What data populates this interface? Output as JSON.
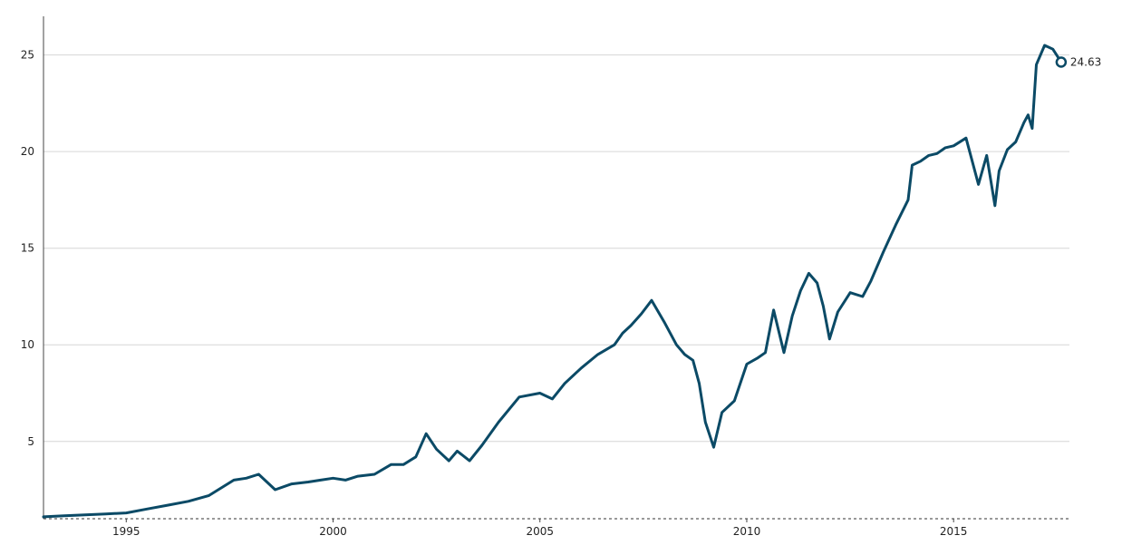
{
  "chart_data": {
    "type": "line",
    "title": "",
    "xlabel": "",
    "ylabel": "",
    "xlim": [
      1993.0,
      2017.8
    ],
    "ylim": [
      1.0,
      27.0
    ],
    "x_ticks": [
      {
        "value": 1995,
        "label": "1995"
      },
      {
        "value": 2000,
        "label": "2000"
      },
      {
        "value": 2005,
        "label": "2005"
      },
      {
        "value": 2010,
        "label": "2010"
      },
      {
        "value": 2015,
        "label": "2015"
      }
    ],
    "y_ticks": [
      {
        "value": 5,
        "label": "5"
      },
      {
        "value": 10,
        "label": "10"
      },
      {
        "value": 15,
        "label": "15"
      },
      {
        "value": 20,
        "label": "20"
      },
      {
        "value": 25,
        "label": "25"
      }
    ],
    "grid": true,
    "line_color": "#0b4a66",
    "end_label": "24.63",
    "series": [
      {
        "x": [
          1993.0,
          1993.5,
          1994.0,
          1994.5,
          1995.0,
          1995.5,
          1996.0,
          1996.5,
          1997.0,
          1997.3,
          1997.6,
          1997.9,
          1998.2,
          1998.4,
          1998.6,
          1999.0,
          1999.4,
          1999.7,
          2000.0,
          2000.3,
          2000.6,
          2001.0,
          2001.4,
          2001.7,
          2002.0,
          2002.25,
          2002.5,
          2002.8,
          2003.0,
          2003.3,
          2003.6,
          2004.0,
          2004.5,
          2005.0,
          2005.3,
          2005.6,
          2006.0,
          2006.4,
          2006.8,
          2007.0,
          2007.2,
          2007.45,
          2007.7,
          2008.0,
          2008.3,
          2008.5,
          2008.7,
          2008.85,
          2009.0,
          2009.2,
          2009.4,
          2009.7,
          2010.0,
          2010.25,
          2010.45,
          2010.65,
          2010.9,
          2011.1,
          2011.3,
          2011.5,
          2011.7,
          2011.85,
          2012.0,
          2012.2,
          2012.5,
          2012.8,
          2013.0,
          2013.3,
          2013.6,
          2013.9,
          2014.0,
          2014.2,
          2014.4,
          2014.6,
          2014.8,
          2015.0,
          2015.3,
          2015.6,
          2015.8,
          2016.0,
          2016.1,
          2016.3,
          2016.5,
          2016.7,
          2016.8,
          2016.9,
          2017.0,
          2017.2,
          2017.4,
          2017.6
        ],
        "values": [
          1.1,
          1.15,
          1.2,
          1.25,
          1.3,
          1.5,
          1.7,
          1.9,
          2.2,
          2.6,
          3.0,
          3.1,
          3.3,
          2.9,
          2.5,
          2.8,
          2.9,
          3.0,
          3.1,
          3.0,
          3.2,
          3.3,
          3.8,
          3.8,
          4.2,
          5.4,
          4.6,
          4.0,
          4.5,
          4.0,
          4.8,
          6.0,
          7.3,
          7.5,
          7.2,
          8.0,
          8.8,
          9.5,
          10.0,
          10.6,
          11.0,
          11.6,
          12.3,
          11.2,
          10.0,
          9.5,
          9.2,
          8.0,
          6.0,
          4.7,
          6.5,
          7.1,
          9.0,
          9.3,
          9.6,
          11.8,
          9.6,
          11.5,
          12.8,
          13.7,
          13.2,
          12.0,
          10.3,
          11.7,
          12.7,
          12.5,
          13.3,
          14.8,
          16.2,
          17.5,
          19.3,
          19.5,
          19.8,
          19.9,
          20.2,
          20.3,
          20.7,
          18.3,
          19.8,
          17.2,
          19.0,
          20.1,
          20.5,
          21.5,
          21.9,
          21.2,
          24.5,
          25.5,
          25.3,
          24.63
        ]
      }
    ]
  }
}
